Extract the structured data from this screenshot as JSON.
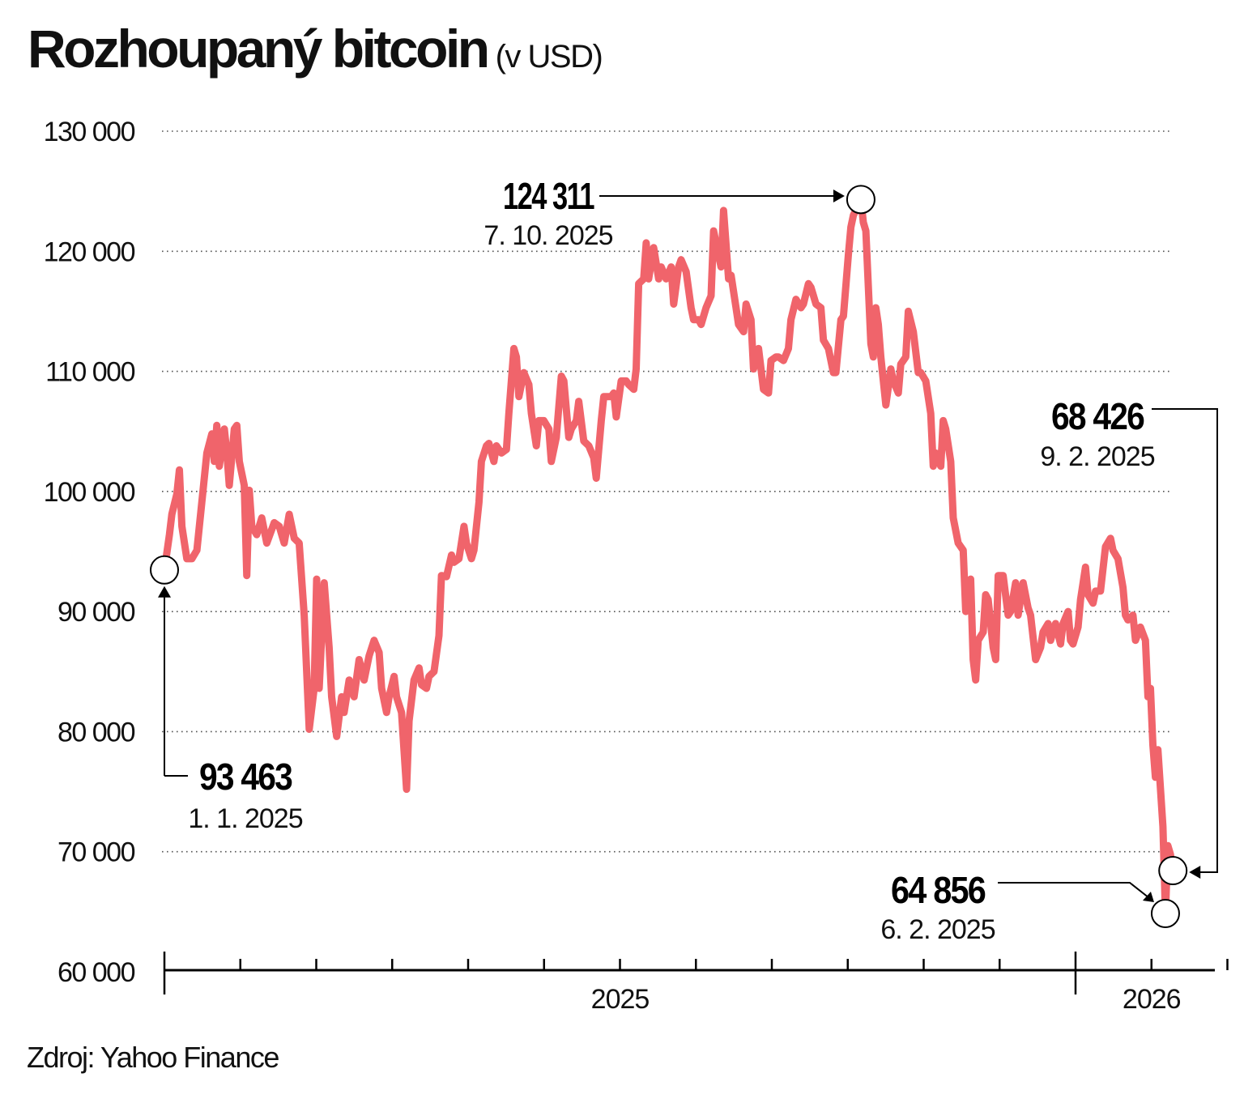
{
  "title": "Rozhoupaný bitcoin",
  "title_unit": "(v USD)",
  "source": "Zdroj: Yahoo Finance",
  "colors": {
    "line": "#f0646b",
    "text": "#111111",
    "grid": "#555555"
  },
  "chart_data": {
    "type": "line",
    "title": "Rozhoupaný bitcoin (v USD)",
    "xlabel": "",
    "ylabel": "",
    "ylim": [
      60000,
      130000
    ],
    "xlim": [
      "2025-01-01",
      "2026-02-09"
    ],
    "grid": true,
    "grid_style": "dotted horizontal",
    "y_ticks": [
      {
        "value": 130000,
        "label": "130 000"
      },
      {
        "value": 120000,
        "label": "120 000"
      },
      {
        "value": 110000,
        "label": "110 000"
      },
      {
        "value": 100000,
        "label": "100 000"
      },
      {
        "value": 90000,
        "label": "90 000"
      },
      {
        "value": 80000,
        "label": "80 000"
      },
      {
        "value": 70000,
        "label": "70 000"
      },
      {
        "value": 60000,
        "label": "60 000"
      }
    ],
    "x_labels": [
      {
        "label": "2025",
        "month": "2025-07"
      },
      {
        "label": "2026",
        "month": "2026-02"
      }
    ],
    "annotations": [
      {
        "value": "93 463",
        "date": "1. 1. 2025",
        "x": "2025-01-01",
        "y": 93463
      },
      {
        "value": "124 311",
        "date": "7. 10. 2025",
        "x": "2025-10-07",
        "y": 124311
      },
      {
        "value": "68 426",
        "date": "9. 2. 2025",
        "x": "2026-02-09",
        "y": 68426
      },
      {
        "value": "64 856",
        "date": "6. 2. 2025",
        "x": "2026-02-06",
        "y": 64856
      }
    ],
    "points": [
      [
        "2025-01-01",
        93463
      ],
      [
        "2025-01-03",
        96400
      ],
      [
        "2025-01-04",
        98100
      ],
      [
        "2025-01-06",
        99800
      ],
      [
        "2025-01-07",
        101800
      ],
      [
        "2025-01-08",
        97100
      ],
      [
        "2025-01-10",
        94400
      ],
      [
        "2025-01-12",
        94400
      ],
      [
        "2025-01-14",
        95100
      ],
      [
        "2025-01-16",
        99100
      ],
      [
        "2025-01-18",
        103200
      ],
      [
        "2025-01-20",
        104800
      ],
      [
        "2025-01-21",
        102500
      ],
      [
        "2025-01-22",
        105500
      ],
      [
        "2025-01-23",
        102100
      ],
      [
        "2025-01-25",
        105200
      ],
      [
        "2025-01-26",
        103200
      ],
      [
        "2025-01-27",
        100500
      ],
      [
        "2025-01-29",
        105200
      ],
      [
        "2025-01-30",
        105500
      ],
      [
        "2025-01-31",
        102500
      ],
      [
        "2025-02-02",
        100500
      ],
      [
        "2025-02-03",
        93000
      ],
      [
        "2025-02-04",
        100100
      ],
      [
        "2025-02-05",
        97100
      ],
      [
        "2025-02-07",
        96400
      ],
      [
        "2025-02-09",
        97800
      ],
      [
        "2025-02-11",
        95700
      ],
      [
        "2025-02-14",
        97400
      ],
      [
        "2025-02-16",
        97100
      ],
      [
        "2025-02-18",
        95700
      ],
      [
        "2025-02-20",
        98100
      ],
      [
        "2025-02-22",
        96100
      ],
      [
        "2025-02-24",
        95700
      ],
      [
        "2025-02-26",
        89700
      ],
      [
        "2025-02-28",
        80200
      ],
      [
        "2025-03-02",
        83600
      ],
      [
        "2025-03-03",
        92700
      ],
      [
        "2025-03-04",
        83600
      ],
      [
        "2025-03-06",
        92400
      ],
      [
        "2025-03-08",
        87000
      ],
      [
        "2025-03-09",
        82900
      ],
      [
        "2025-03-11",
        79600
      ],
      [
        "2025-03-13",
        82900
      ],
      [
        "2025-03-14",
        81600
      ],
      [
        "2025-03-16",
        84300
      ],
      [
        "2025-03-18",
        82900
      ],
      [
        "2025-03-20",
        86000
      ],
      [
        "2025-03-22",
        84300
      ],
      [
        "2025-03-24",
        86300
      ],
      [
        "2025-03-26",
        87600
      ],
      [
        "2025-03-28",
        86600
      ],
      [
        "2025-03-29",
        83600
      ],
      [
        "2025-03-31",
        81600
      ],
      [
        "2025-04-01",
        82900
      ],
      [
        "2025-04-03",
        84600
      ],
      [
        "2025-04-04",
        82900
      ],
      [
        "2025-04-06",
        81600
      ],
      [
        "2025-04-08",
        75200
      ],
      [
        "2025-04-09",
        80900
      ],
      [
        "2025-04-11",
        84300
      ],
      [
        "2025-04-13",
        85300
      ],
      [
        "2025-04-14",
        83900
      ],
      [
        "2025-04-16",
        83600
      ],
      [
        "2025-04-17",
        84600
      ],
      [
        "2025-04-19",
        85000
      ],
      [
        "2025-04-21",
        88000
      ],
      [
        "2025-04-22",
        93000
      ],
      [
        "2025-04-24",
        92900
      ],
      [
        "2025-04-26",
        94700
      ],
      [
        "2025-04-27",
        94100
      ],
      [
        "2025-04-29",
        94400
      ],
      [
        "2025-05-01",
        97100
      ],
      [
        "2025-05-02",
        95700
      ],
      [
        "2025-05-04",
        94400
      ],
      [
        "2025-05-05",
        95100
      ],
      [
        "2025-05-07",
        99100
      ],
      [
        "2025-05-08",
        102500
      ],
      [
        "2025-05-10",
        103800
      ],
      [
        "2025-05-11",
        104000
      ],
      [
        "2025-05-13",
        102500
      ],
      [
        "2025-05-14",
        103800
      ],
      [
        "2025-05-16",
        103200
      ],
      [
        "2025-05-18",
        103500
      ],
      [
        "2025-05-19",
        106500
      ],
      [
        "2025-05-21",
        111900
      ],
      [
        "2025-05-22",
        111200
      ],
      [
        "2025-05-23",
        107900
      ],
      [
        "2025-05-25",
        109900
      ],
      [
        "2025-05-27",
        108900
      ],
      [
        "2025-05-28",
        106500
      ],
      [
        "2025-05-30",
        103800
      ],
      [
        "2025-05-31",
        105900
      ],
      [
        "2025-06-02",
        105900
      ],
      [
        "2025-06-04",
        105200
      ],
      [
        "2025-06-05",
        102500
      ],
      [
        "2025-06-07",
        104500
      ],
      [
        "2025-06-09",
        109600
      ],
      [
        "2025-06-10",
        109200
      ],
      [
        "2025-06-12",
        104500
      ],
      [
        "2025-06-13",
        105200
      ],
      [
        "2025-06-15",
        105900
      ],
      [
        "2025-06-16",
        107500
      ],
      [
        "2025-06-18",
        104200
      ],
      [
        "2025-06-20",
        103800
      ],
      [
        "2025-06-22",
        102800
      ],
      [
        "2025-06-23",
        101100
      ],
      [
        "2025-06-25",
        105900
      ],
      [
        "2025-06-26",
        107900
      ],
      [
        "2025-06-29",
        107900
      ],
      [
        "2025-06-30",
        108200
      ],
      [
        "2025-07-01",
        106200
      ],
      [
        "2025-07-03",
        109200
      ],
      [
        "2025-07-05",
        109200
      ],
      [
        "2025-07-06",
        108900
      ],
      [
        "2025-07-08",
        108500
      ],
      [
        "2025-07-09",
        110200
      ],
      [
        "2025-07-10",
        117300
      ],
      [
        "2025-07-12",
        117700
      ],
      [
        "2025-07-13",
        120700
      ],
      [
        "2025-07-14",
        117700
      ],
      [
        "2025-07-16",
        120300
      ],
      [
        "2025-07-18",
        117700
      ],
      [
        "2025-07-19",
        118700
      ],
      [
        "2025-07-21",
        117700
      ],
      [
        "2025-07-23",
        118700
      ],
      [
        "2025-07-24",
        115600
      ],
      [
        "2025-07-26",
        118700
      ],
      [
        "2025-07-27",
        119300
      ],
      [
        "2025-07-29",
        118300
      ],
      [
        "2025-07-31",
        115300
      ],
      [
        "2025-08-01",
        114300
      ],
      [
        "2025-08-03",
        114300
      ],
      [
        "2025-08-04",
        113900
      ],
      [
        "2025-08-06",
        115300
      ],
      [
        "2025-08-08",
        116300
      ],
      [
        "2025-08-09",
        121700
      ],
      [
        "2025-08-11",
        119700
      ],
      [
        "2025-08-12",
        118700
      ],
      [
        "2025-08-13",
        123400
      ],
      [
        "2025-08-15",
        117700
      ],
      [
        "2025-08-16",
        118000
      ],
      [
        "2025-08-18",
        115300
      ],
      [
        "2025-08-19",
        113900
      ],
      [
        "2025-08-21",
        113300
      ],
      [
        "2025-08-22",
        115600
      ],
      [
        "2025-08-24",
        114300
      ],
      [
        "2025-08-25",
        110200
      ],
      [
        "2025-08-27",
        111900
      ],
      [
        "2025-08-29",
        108500
      ],
      [
        "2025-08-31",
        108200
      ],
      [
        "2025-09-01",
        110900
      ],
      [
        "2025-09-03",
        111200
      ],
      [
        "2025-09-04",
        111200
      ],
      [
        "2025-09-06",
        110900
      ],
      [
        "2025-09-08",
        111900
      ],
      [
        "2025-09-09",
        114300
      ],
      [
        "2025-09-11",
        116000
      ],
      [
        "2025-09-13",
        115300
      ],
      [
        "2025-09-14",
        115600
      ],
      [
        "2025-09-16",
        117300
      ],
      [
        "2025-09-17",
        117000
      ],
      [
        "2025-09-19",
        115600
      ],
      [
        "2025-09-21",
        115300
      ],
      [
        "2025-09-22",
        112600
      ],
      [
        "2025-09-24",
        111900
      ],
      [
        "2025-09-26",
        109900
      ],
      [
        "2025-09-27",
        109900
      ],
      [
        "2025-09-29",
        114300
      ],
      [
        "2025-09-30",
        114600
      ],
      [
        "2025-10-02",
        119700
      ],
      [
        "2025-10-03",
        122000
      ],
      [
        "2025-10-04",
        123000
      ],
      [
        "2025-10-07",
        124311
      ],
      [
        "2025-10-08",
        122400
      ],
      [
        "2025-10-09",
        121700
      ],
      [
        "2025-10-11",
        112300
      ],
      [
        "2025-10-12",
        111200
      ],
      [
        "2025-10-13",
        115300
      ],
      [
        "2025-10-14",
        113900
      ],
      [
        "2025-10-15",
        111200
      ],
      [
        "2025-10-17",
        107200
      ],
      [
        "2025-10-19",
        110200
      ],
      [
        "2025-10-20",
        109200
      ],
      [
        "2025-10-22",
        108200
      ],
      [
        "2025-10-23",
        110600
      ],
      [
        "2025-10-25",
        111200
      ],
      [
        "2025-10-26",
        115000
      ],
      [
        "2025-10-28",
        113300
      ],
      [
        "2025-10-30",
        109900
      ],
      [
        "2025-10-31",
        109900
      ],
      [
        "2025-11-02",
        109200
      ],
      [
        "2025-11-04",
        106500
      ],
      [
        "2025-11-05",
        102100
      ],
      [
        "2025-11-06",
        103200
      ],
      [
        "2025-11-08",
        102100
      ],
      [
        "2025-11-09",
        105900
      ],
      [
        "2025-11-10",
        105200
      ],
      [
        "2025-11-12",
        102500
      ],
      [
        "2025-11-13",
        97800
      ],
      [
        "2025-11-15",
        95700
      ],
      [
        "2025-11-17",
        95100
      ],
      [
        "2025-11-18",
        90000
      ],
      [
        "2025-11-20",
        92700
      ],
      [
        "2025-11-21",
        86000
      ],
      [
        "2025-11-22",
        84300
      ],
      [
        "2025-11-23",
        87600
      ],
      [
        "2025-11-25",
        88300
      ],
      [
        "2025-11-26",
        91400
      ],
      [
        "2025-11-27",
        91000
      ],
      [
        "2025-11-29",
        87000
      ],
      [
        "2025-11-30",
        86000
      ],
      [
        "2025-12-01",
        93000
      ],
      [
        "2025-12-03",
        93000
      ],
      [
        "2025-12-05",
        89700
      ],
      [
        "2025-12-06",
        90000
      ],
      [
        "2025-12-08",
        92400
      ],
      [
        "2025-12-09",
        89700
      ],
      [
        "2025-12-11",
        92400
      ],
      [
        "2025-12-13",
        90300
      ],
      [
        "2025-12-14",
        89700
      ],
      [
        "2025-12-16",
        86000
      ],
      [
        "2025-12-18",
        87000
      ],
      [
        "2025-12-19",
        88300
      ],
      [
        "2025-12-21",
        89000
      ],
      [
        "2025-12-22",
        87600
      ],
      [
        "2025-12-24",
        89000
      ],
      [
        "2025-12-26",
        87300
      ],
      [
        "2025-12-27",
        89000
      ],
      [
        "2025-12-29",
        90000
      ],
      [
        "2025-12-30",
        87600
      ],
      [
        "2025-12-31",
        87300
      ],
      [
        "2026-01-02",
        88700
      ],
      [
        "2026-01-03",
        91000
      ],
      [
        "2026-01-05",
        93700
      ],
      [
        "2026-01-06",
        91400
      ],
      [
        "2026-01-08",
        90700
      ],
      [
        "2026-01-09",
        91700
      ],
      [
        "2026-01-11",
        91700
      ],
      [
        "2026-01-13",
        95400
      ],
      [
        "2026-01-15",
        96100
      ],
      [
        "2026-01-16",
        95100
      ],
      [
        "2026-01-18",
        94400
      ],
      [
        "2026-01-20",
        92000
      ],
      [
        "2026-01-21",
        89700
      ],
      [
        "2026-01-22",
        89300
      ],
      [
        "2026-01-24",
        89700
      ],
      [
        "2026-01-25",
        87600
      ],
      [
        "2026-01-27",
        88700
      ],
      [
        "2026-01-29",
        87600
      ],
      [
        "2026-01-30",
        82900
      ],
      [
        "2026-01-31",
        83600
      ],
      [
        "2026-02-01",
        78900
      ],
      [
        "2026-02-02",
        76200
      ],
      [
        "2026-02-03",
        78500
      ],
      [
        "2026-02-05",
        72100
      ],
      [
        "2026-02-06",
        64856
      ],
      [
        "2026-02-07",
        70500
      ],
      [
        "2026-02-08",
        69800
      ],
      [
        "2026-02-09",
        68426
      ]
    ]
  }
}
